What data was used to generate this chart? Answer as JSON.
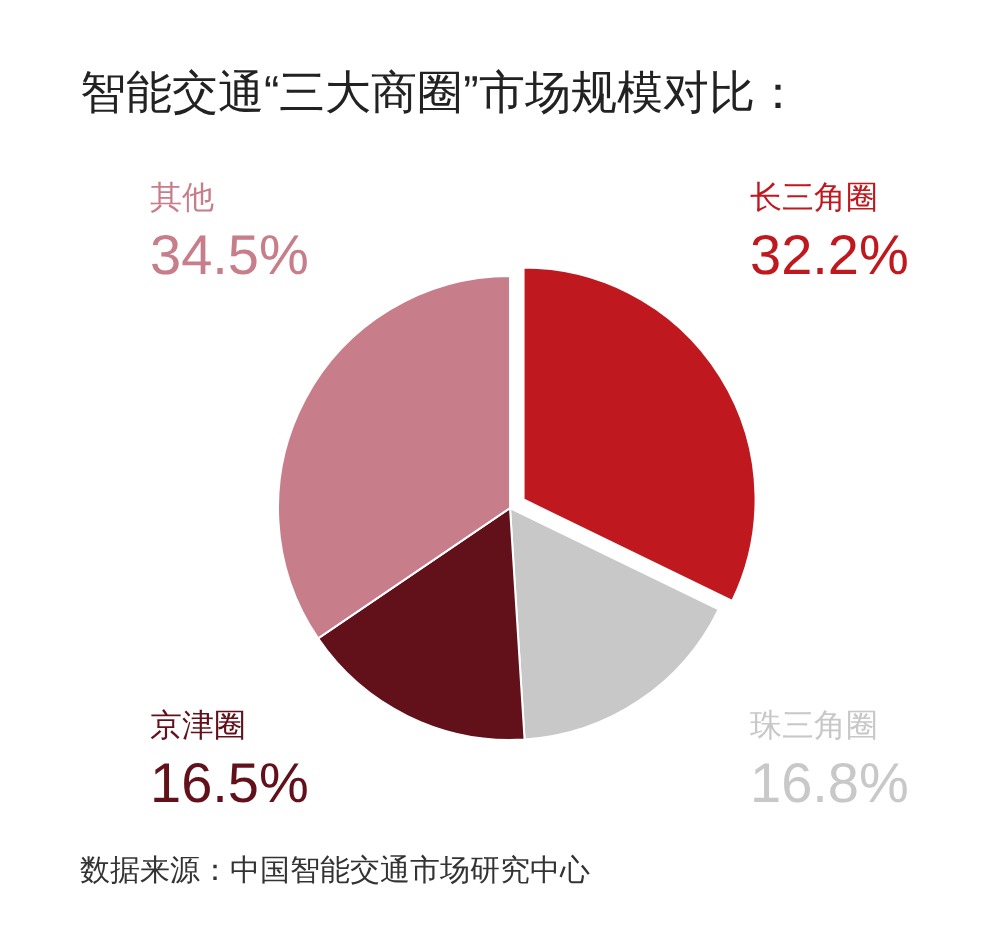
{
  "chart_data": {
    "type": "pie",
    "title": "智能交通“三大商圈”市场规模对比：",
    "categories": [
      "长三角圈",
      "珠三角圈",
      "京津圈",
      "其他"
    ],
    "values": [
      32.2,
      16.8,
      16.5,
      34.5
    ],
    "colors": [
      "#c0181f",
      "#c8c8c8",
      "#62101a",
      "#c77d8a"
    ],
    "value_labels": [
      "32.2%",
      "16.8%",
      "16.5%",
      "34.5%"
    ],
    "legend": false,
    "annotations": [
      "数据来源：中国智能交通市场研究中心"
    ]
  }
}
